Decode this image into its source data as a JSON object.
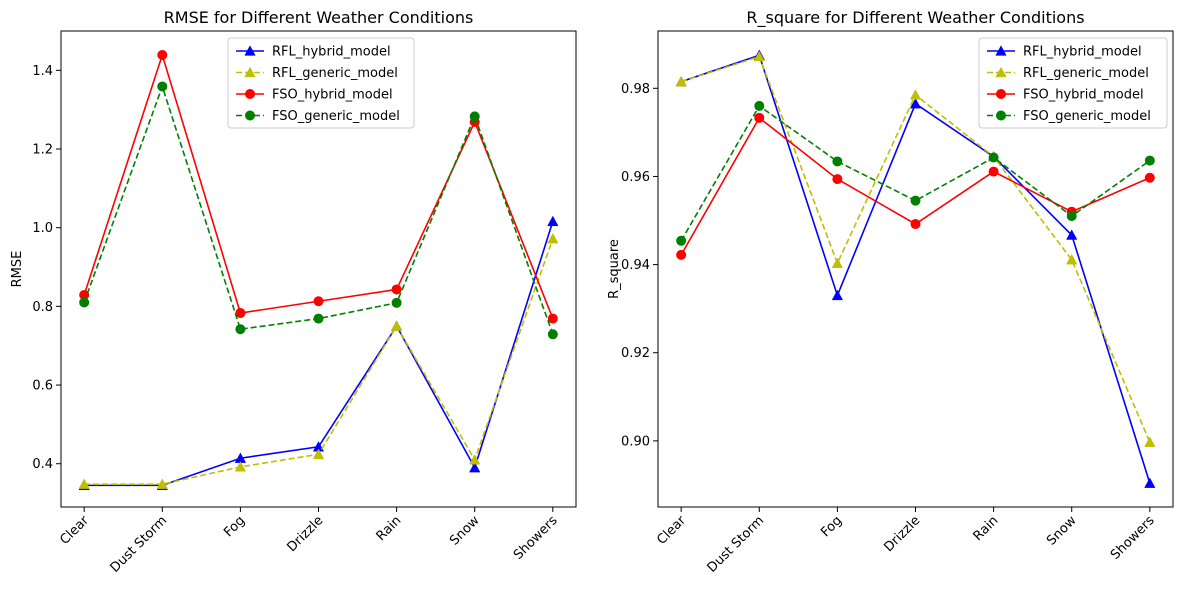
{
  "chart_data": [
    {
      "type": "line",
      "title": "RMSE for Different Weather Conditions",
      "xlabel": "",
      "ylabel": "RMSE",
      "categories": [
        "Clear",
        "Dust Storm",
        "Fog",
        "Drizzle",
        "Rain",
        "Snow",
        "Showers"
      ],
      "ylim": [
        0.29,
        1.5
      ],
      "yticks": [
        0.4,
        0.6,
        0.8,
        1.0,
        1.2,
        1.4
      ],
      "ytick_labels": [
        "0.4",
        "0.6",
        "0.8",
        "1.0",
        "1.2",
        "1.4"
      ],
      "legend_position": "top-center",
      "grid": false,
      "series": [
        {
          "name": "RFL_hybrid_model",
          "color": "#0000ff",
          "marker": "triangle",
          "dashed": false,
          "values": [
            0.345,
            0.345,
            0.414,
            0.443,
            0.75,
            0.39,
            1.016
          ]
        },
        {
          "name": "RFL_generic_model",
          "color": "#bfbf00",
          "marker": "triangle",
          "dashed": true,
          "values": [
            0.348,
            0.348,
            0.392,
            0.424,
            0.75,
            0.41,
            0.972
          ]
        },
        {
          "name": "FSO_hybrid_model",
          "color": "#ff0000",
          "marker": "circle",
          "dashed": false,
          "values": [
            0.829,
            1.439,
            0.783,
            0.813,
            0.843,
            1.269,
            0.769
          ]
        },
        {
          "name": "FSO_generic_model",
          "color": "#008000",
          "marker": "circle",
          "dashed": true,
          "values": [
            0.81,
            1.359,
            0.742,
            0.769,
            0.809,
            1.283,
            0.729
          ]
        }
      ]
    },
    {
      "type": "line",
      "title": "R_square for Different Weather Conditions",
      "xlabel": "",
      "ylabel": "R_square",
      "categories": [
        "Clear",
        "Dust Storm",
        "Fog",
        "Drizzle",
        "Rain",
        "Snow",
        "Showers"
      ],
      "ylim": [
        0.885,
        0.993
      ],
      "yticks": [
        0.9,
        0.92,
        0.94,
        0.96,
        0.98
      ],
      "ytick_labels": [
        "0.90",
        "0.92",
        "0.94",
        "0.96",
        "0.98"
      ],
      "legend_position": "top-right",
      "grid": false,
      "series": [
        {
          "name": "RFL_hybrid_model",
          "color": "#0000ff",
          "marker": "triangle",
          "dashed": false,
          "values": [
            0.9815,
            0.9875,
            0.933,
            0.9765,
            0.9645,
            0.9467,
            0.8904
          ]
        },
        {
          "name": "RFL_generic_model",
          "color": "#bfbf00",
          "marker": "triangle",
          "dashed": true,
          "values": [
            0.9815,
            0.9872,
            0.9403,
            0.9785,
            0.9645,
            0.9411,
            0.8997
          ]
        },
        {
          "name": "FSO_hybrid_model",
          "color": "#ff0000",
          "marker": "circle",
          "dashed": false,
          "values": [
            0.9422,
            0.9733,
            0.9594,
            0.9492,
            0.9611,
            0.952,
            0.9597
          ]
        },
        {
          "name": "FSO_generic_model",
          "color": "#008000",
          "marker": "circle",
          "dashed": true,
          "values": [
            0.9454,
            0.976,
            0.9634,
            0.9545,
            0.9643,
            0.951,
            0.9636
          ]
        }
      ]
    }
  ]
}
